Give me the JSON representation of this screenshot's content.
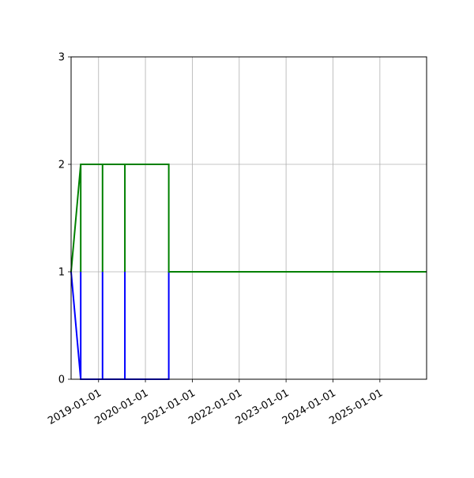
{
  "chart_data": {
    "type": "line",
    "title": "",
    "xlabel": "",
    "ylabel": "",
    "x_axis_type": "date",
    "xlim": [
      "2018-06-01",
      "2025-12-31"
    ],
    "ylim": [
      0,
      3
    ],
    "grid": true,
    "x_ticks": [
      "2019-01-01",
      "2020-01-01",
      "2021-01-01",
      "2022-01-01",
      "2023-01-01",
      "2024-01-01",
      "2025-01-01"
    ],
    "y_ticks": [
      0,
      1,
      2,
      3
    ],
    "series": [
      {
        "color": "#0000ff",
        "points": [
          [
            "2018-06-01",
            1
          ],
          [
            "2018-08-15",
            0
          ],
          [
            "2018-08-15",
            1
          ],
          [
            "2018-08-15",
            0
          ],
          [
            "2019-02-01",
            0
          ],
          [
            "2019-02-01",
            1
          ],
          [
            "2019-02-01",
            0
          ],
          [
            "2019-07-25",
            0
          ],
          [
            "2019-07-25",
            1
          ],
          [
            "2019-07-25",
            0
          ],
          [
            "2020-07-01",
            0
          ],
          [
            "2020-07-01",
            1
          ]
        ]
      },
      {
        "color": "#008000",
        "points": [
          [
            "2018-06-01",
            1
          ],
          [
            "2018-08-15",
            2
          ],
          [
            "2018-08-15",
            1
          ],
          [
            "2018-08-15",
            2
          ],
          [
            "2019-02-01",
            2
          ],
          [
            "2019-02-01",
            1
          ],
          [
            "2019-02-01",
            2
          ],
          [
            "2019-07-25",
            2
          ],
          [
            "2019-07-25",
            1
          ],
          [
            "2019-07-25",
            2
          ],
          [
            "2020-07-01",
            2
          ],
          [
            "2020-07-01",
            1
          ],
          [
            "2025-12-31",
            1
          ]
        ]
      }
    ]
  }
}
